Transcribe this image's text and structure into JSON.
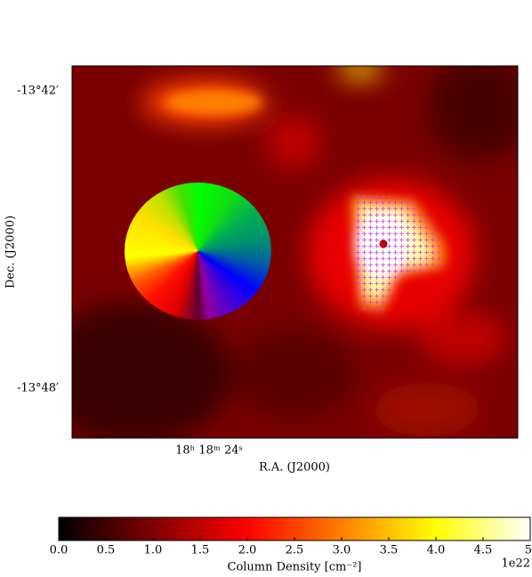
{
  "chart_data": {
    "type": "image",
    "xlabel": "R.A. (J2000)",
    "ylabel": "Dec. (J2000)",
    "x_tick_labels": [
      "18ʰ 18ᵐ 24ˢ"
    ],
    "y_tick_labels": [
      "-13°42′",
      "-13°48′"
    ],
    "colorbar": {
      "label": "Column Density [cm⁻²]",
      "offset": "1e22",
      "clim": [
        0,
        5
      ],
      "colormap": [
        "#000000",
        "#800000",
        "#ff0000",
        "#ff8000",
        "#ffff00",
        "#ffffff"
      ],
      "ticks": [
        {
          "value": 0,
          "label": "0.0"
        },
        0.5,
        {
          "value": 1,
          "label": "1.0"
        },
        1.5,
        {
          "value": 2,
          "label": "2.0"
        },
        2.5,
        {
          "value": 3,
          "label": "3.0"
        },
        3.5,
        {
          "value": 4,
          "label": "4.0"
        },
        4.5,
        {
          "value": 5,
          "label": "5."
        }
      ]
    }
  }
}
